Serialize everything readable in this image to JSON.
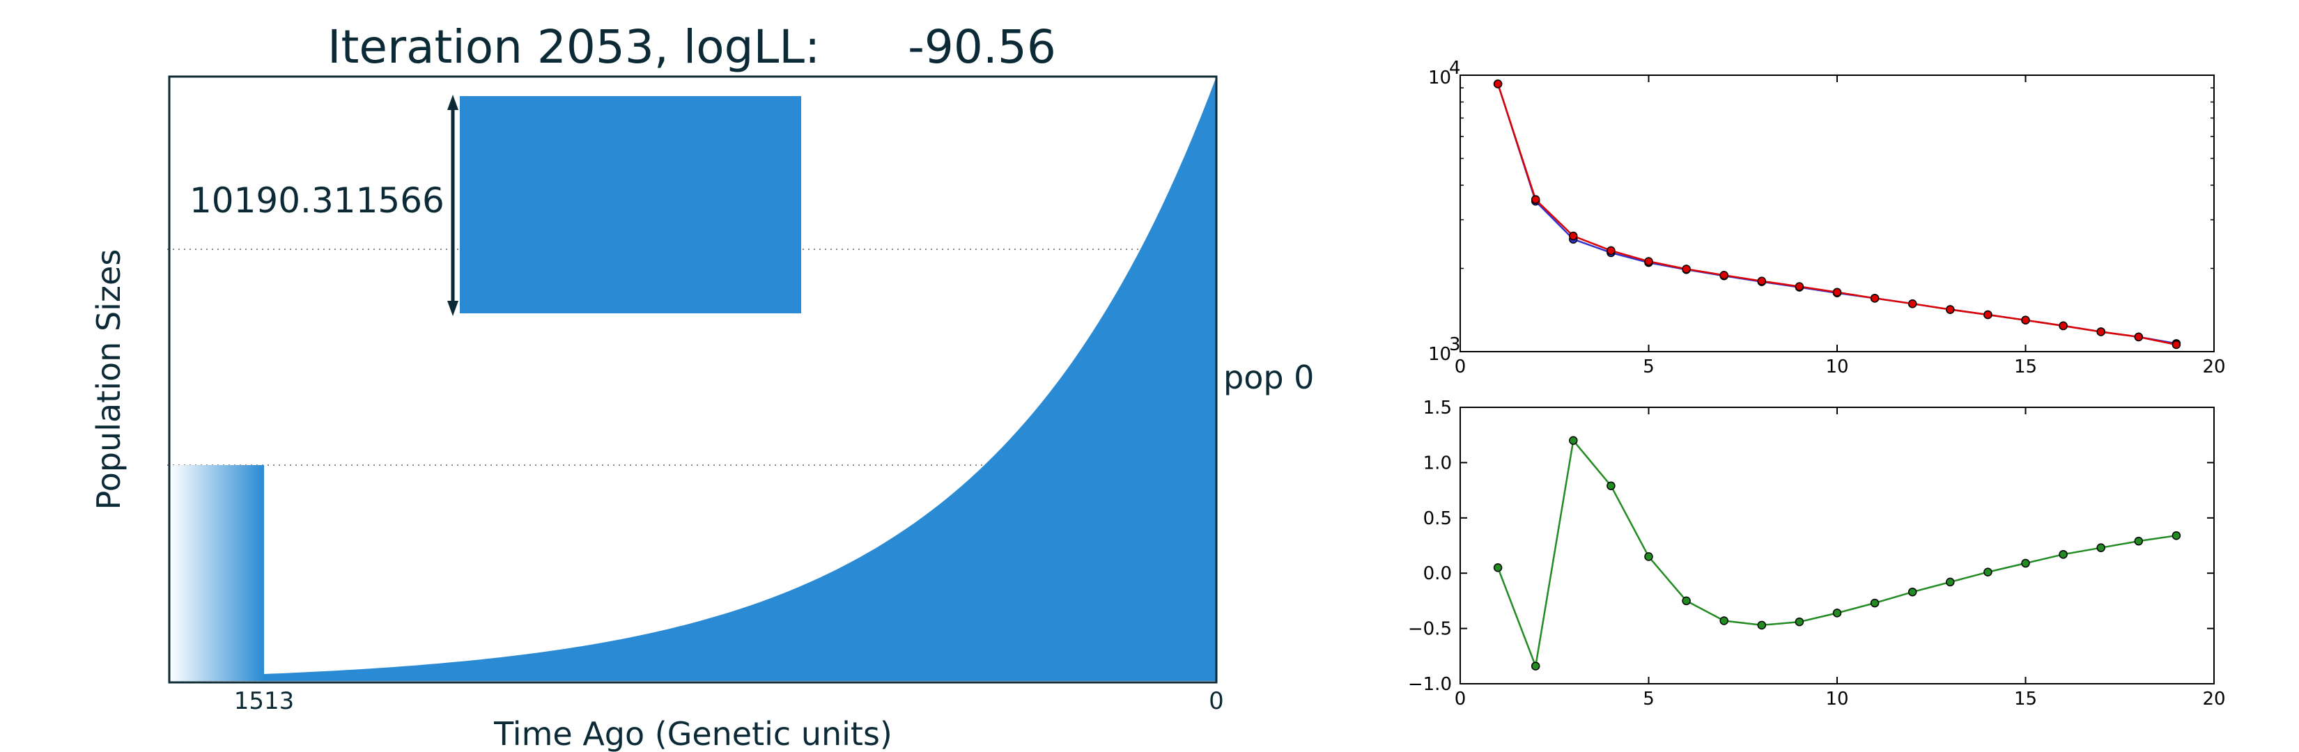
{
  "chart_data": [
    {
      "type": "area",
      "title": "Iteration 2053, logLL:      -90.56",
      "xlabel": "Time Ago (Genetic units)",
      "ylabel": "Population Sizes",
      "x_ticks": [
        "1513",
        "0"
      ],
      "scale_annotation": "10190.311566",
      "series": [
        {
          "name": "pop 0"
        }
      ]
    },
    {
      "type": "line",
      "y_scale": "log",
      "xlim": [
        0,
        20
      ],
      "ylim": [
        1000,
        10000
      ],
      "x_ticks": [
        "0",
        "5",
        "10",
        "15",
        "20"
      ],
      "y_ticks": [
        {
          "base": "10",
          "exp": "4"
        },
        {
          "base": "10",
          "exp": "3"
        }
      ],
      "series": [
        {
          "color": "#3333cc",
          "x": [
            1,
            2,
            3,
            4,
            5,
            6,
            7,
            8,
            9,
            10,
            11,
            12,
            13,
            14,
            15,
            16,
            17,
            18,
            19
          ],
          "y": [
            9300,
            3500,
            2550,
            2280,
            2100,
            1980,
            1880,
            1790,
            1710,
            1630,
            1560,
            1490,
            1420,
            1360,
            1300,
            1240,
            1180,
            1130,
            1070
          ]
        },
        {
          "color": "#dd0000",
          "x": [
            1,
            2,
            3,
            4,
            5,
            6,
            7,
            8,
            9,
            10,
            11,
            12,
            13,
            14,
            15,
            16,
            17,
            18,
            19
          ],
          "y": [
            9300,
            3550,
            2620,
            2320,
            2120,
            1990,
            1890,
            1800,
            1720,
            1640,
            1560,
            1490,
            1420,
            1360,
            1300,
            1240,
            1180,
            1130,
            1060
          ]
        }
      ]
    },
    {
      "type": "line",
      "xlim": [
        0,
        20
      ],
      "ylim": [
        -1.0,
        1.5
      ],
      "x_ticks": [
        "0",
        "5",
        "10",
        "15",
        "20"
      ],
      "y_ticks": [
        "1.5",
        "1.0",
        "0.5",
        "0.0",
        "−0.5",
        "−1.0"
      ],
      "series": [
        {
          "color": "#228b22",
          "x": [
            1,
            2,
            3,
            4,
            5,
            6,
            7,
            8,
            9,
            10,
            11,
            12,
            13,
            14,
            15,
            16,
            17,
            18,
            19
          ],
          "y": [
            0.05,
            -0.84,
            1.2,
            0.79,
            0.15,
            -0.25,
            -0.43,
            -0.47,
            -0.44,
            -0.36,
            -0.27,
            -0.17,
            -0.08,
            0.01,
            0.09,
            0.17,
            0.23,
            0.29,
            0.34
          ]
        }
      ]
    }
  ]
}
